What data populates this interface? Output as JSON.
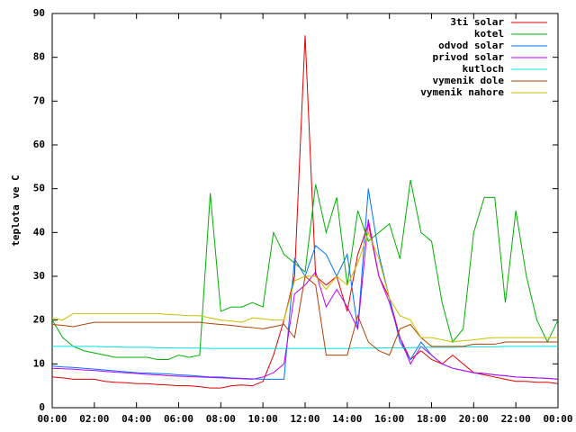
{
  "chart_data": {
    "type": "line",
    "y_label": "teplota ve C",
    "x": [
      0,
      0.5,
      1,
      1.5,
      2,
      2.5,
      3,
      3.5,
      4,
      4.5,
      5,
      5.5,
      6,
      6.5,
      7,
      7.5,
      8,
      8.5,
      9,
      9.5,
      10,
      10.5,
      11,
      11.5,
      12,
      12.5,
      13,
      13.5,
      14,
      14.5,
      15,
      15.5,
      16,
      16.5,
      17,
      17.5,
      18,
      18.5,
      19,
      19.5,
      20,
      20.5,
      21,
      21.5,
      22,
      22.5,
      23,
      23.5,
      24
    ],
    "xlim": [
      0,
      24
    ],
    "xticks": [
      {
        "value": 0,
        "label": "00:00"
      },
      {
        "value": 2,
        "label": "02:00"
      },
      {
        "value": 4,
        "label": "04:00"
      },
      {
        "value": 6,
        "label": "06:00"
      },
      {
        "value": 8,
        "label": "08:00"
      },
      {
        "value": 10,
        "label": "10:00"
      },
      {
        "value": 12,
        "label": "12:00"
      },
      {
        "value": 14,
        "label": "14:00"
      },
      {
        "value": 16,
        "label": "16:00"
      },
      {
        "value": 18,
        "label": "18:00"
      },
      {
        "value": 20,
        "label": "20:00"
      },
      {
        "value": 22,
        "label": "22:00"
      },
      {
        "value": 24,
        "label": "00:00"
      }
    ],
    "ylim": [
      0,
      90
    ],
    "yticks": [
      0,
      10,
      20,
      30,
      40,
      50,
      60,
      70,
      80,
      90
    ],
    "legend": "top-right",
    "series": [
      {
        "name": "3ti solar",
        "color": "#e00000",
        "values": [
          7,
          6.8,
          6.5,
          6.5,
          6.5,
          6,
          5.8,
          5.7,
          5.5,
          5.5,
          5.3,
          5.2,
          5,
          5,
          4.8,
          4.5,
          4.5,
          5,
          5.2,
          5,
          6,
          12,
          20,
          30,
          85,
          30,
          28,
          30,
          22,
          35,
          42,
          30,
          25,
          16,
          11,
          13,
          11,
          10,
          12,
          10,
          8,
          7.5,
          7,
          6.5,
          6,
          6,
          5.8,
          5.8,
          5.5
        ]
      },
      {
        "name": "kotel",
        "color": "#00b000",
        "values": [
          20,
          16,
          14,
          13,
          12.5,
          12,
          11.5,
          11.5,
          11.5,
          11.5,
          11,
          11,
          12,
          11.5,
          12,
          49,
          22,
          23,
          23,
          24,
          23,
          40,
          35,
          33,
          31,
          51,
          40,
          48,
          28,
          45,
          38,
          40,
          42,
          34,
          52,
          40,
          38,
          24,
          15,
          18,
          40,
          48,
          48,
          24,
          45,
          30,
          20,
          15,
          20
        ]
      },
      {
        "name": "odvod solar",
        "color": "#0070ff",
        "values": [
          9.5,
          9.3,
          9.2,
          9,
          8.8,
          8.6,
          8.4,
          8.2,
          8,
          7.9,
          7.8,
          7.7,
          7.5,
          7.4,
          7.2,
          7,
          7,
          6.8,
          6.7,
          6.6,
          6.5,
          6.5,
          6.5,
          34,
          30,
          37,
          35,
          30,
          35,
          18,
          50,
          35,
          25,
          15,
          11,
          15,
          12,
          10,
          9,
          8.5,
          8,
          7.8,
          7.5,
          7.3,
          7,
          6.9,
          6.8,
          6.7,
          6.5
        ]
      },
      {
        "name": "privod solar",
        "color": "#c000ff",
        "values": [
          9,
          8.9,
          8.8,
          8.6,
          8.5,
          8.3,
          8.1,
          8,
          7.8,
          7.6,
          7.5,
          7.3,
          7.2,
          7.1,
          7,
          6.9,
          6.8,
          6.7,
          6.6,
          6.5,
          7,
          8,
          10,
          26,
          28,
          31,
          23,
          27,
          23,
          18,
          43,
          30,
          24,
          16,
          10,
          14,
          12,
          10,
          9,
          8.5,
          8,
          7.8,
          7.5,
          7.3,
          7,
          6.9,
          6.8,
          6.7,
          6.5
        ]
      },
      {
        "name": "kutloch",
        "color": "#00e0e0",
        "values": [
          14,
          14,
          14,
          14,
          14,
          13.9,
          13.9,
          13.8,
          13.8,
          13.8,
          13.7,
          13.7,
          13.6,
          13.6,
          13.6,
          13.5,
          13.5,
          13.5,
          13.5,
          13.5,
          13.5,
          13.5,
          13.5,
          13.5,
          13.5,
          13.5,
          13.5,
          13.5,
          13.5,
          13.6,
          13.6,
          13.6,
          13.7,
          13.7,
          13.7,
          13.8,
          13.8,
          13.8,
          13.8,
          13.9,
          13.9,
          13.9,
          13.9,
          14,
          14,
          14,
          14,
          14,
          14
        ]
      },
      {
        "name": "vymenik dole",
        "color": "#b04000",
        "values": [
          19,
          18.8,
          18.5,
          19,
          19.5,
          19.5,
          19.5,
          19.5,
          19.5,
          19.5,
          19.5,
          19.5,
          19.5,
          19.5,
          19.5,
          19.2,
          19,
          18.8,
          18.5,
          18.3,
          18,
          18.5,
          19,
          16,
          30,
          28,
          12,
          12,
          12,
          21,
          15,
          13,
          12,
          18,
          19,
          16,
          14,
          14,
          14,
          14,
          14.5,
          14.5,
          14.5,
          15,
          15,
          15,
          15,
          15,
          15
        ]
      },
      {
        "name": "vymenik nahore",
        "color": "#c8c000",
        "values": [
          20.5,
          20,
          21.5,
          21.5,
          21.5,
          21.5,
          21.5,
          21.5,
          21.5,
          21.5,
          21.5,
          21.3,
          21.2,
          21,
          21,
          20.5,
          20,
          19.8,
          19.5,
          20.5,
          20.3,
          20,
          20,
          29,
          30,
          30,
          27,
          30,
          28,
          33,
          40,
          34,
          25,
          21,
          20,
          16,
          16,
          15.5,
          15,
          15.3,
          15.5,
          15.8,
          16,
          16,
          16,
          16,
          16,
          16,
          16
        ]
      }
    ]
  }
}
